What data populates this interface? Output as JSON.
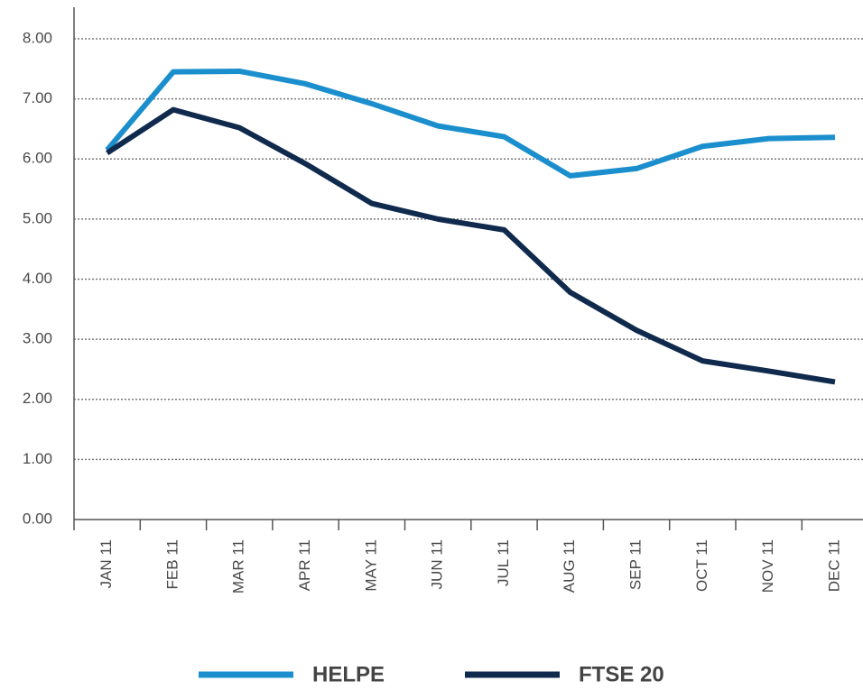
{
  "chart_data": {
    "type": "line",
    "categories": [
      "JAN 11",
      "FEB 11",
      "MAR 11",
      "APR 11",
      "MAY 11",
      "JUN 11",
      "JUL 11",
      "AUG 11",
      "SEP 11",
      "OCT 11",
      "NOV 11",
      "DEC 11"
    ],
    "series": [
      {
        "name": "HELPE",
        "color": "#1b8fcd",
        "values": [
          6.15,
          7.45,
          7.46,
          7.25,
          6.92,
          6.55,
          6.37,
          5.72,
          5.84,
          6.21,
          6.34,
          6.36
        ]
      },
      {
        "name": "FTSE 20",
        "color": "#0f2a4d",
        "values": [
          6.1,
          6.82,
          6.52,
          5.92,
          5.26,
          5.0,
          4.82,
          3.78,
          3.15,
          2.64,
          2.47,
          2.29
        ]
      }
    ],
    "ylim": [
      0,
      8
    ],
    "yticks": [
      {
        "value": 0,
        "label": "0.00"
      },
      {
        "value": 1,
        "label": "1.00"
      },
      {
        "value": 2,
        "label": "2.00"
      },
      {
        "value": 3,
        "label": "3.00"
      },
      {
        "value": 4,
        "label": "4.00"
      },
      {
        "value": 5,
        "label": "5.00"
      },
      {
        "value": 6,
        "label": "6.00"
      },
      {
        "value": 7,
        "label": "7.00"
      },
      {
        "value": 8,
        "label": "8.00"
      }
    ],
    "grid": true,
    "legend": "bottom"
  }
}
